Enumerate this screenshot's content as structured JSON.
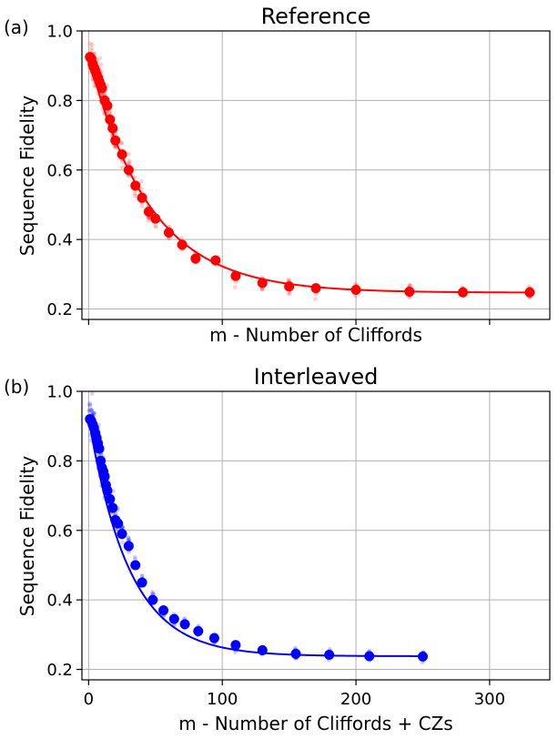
{
  "panels": [
    {
      "panel_label": "(a)",
      "title": "Reference",
      "xlabel": "m - Number of Cliffords",
      "ylabel": "Sequence Fidelity",
      "x_tick_labels_shown": false,
      "color": "#ff0000"
    },
    {
      "panel_label": "(b)",
      "title": "Interleaved",
      "xlabel": "m - Number of Cliffords + CZs",
      "ylabel": "Sequence Fidelity",
      "x_tick_labels_shown": true,
      "color": "#0000ff"
    }
  ],
  "chart_data": [
    {
      "type": "scatter",
      "title": "Reference",
      "xlabel": "m - Number of Cliffords",
      "ylabel": "Sequence Fidelity",
      "xlim": [
        -5,
        345
      ],
      "ylim": [
        0.17,
        1.0
      ],
      "xticks": [
        0,
        100,
        200,
        300
      ],
      "xtick_labels": [],
      "yticks": [
        0.2,
        0.4,
        0.6,
        0.8,
        1.0
      ],
      "ytick_labels": [
        "0.2",
        "0.4",
        "0.6",
        "0.8",
        "1.0"
      ],
      "grid": true,
      "color": "#ff0000",
      "fit": {
        "A": 0.68,
        "p": 0.9783,
        "B": 0.247
      },
      "series": [
        {
          "x": [
            1,
            2,
            3,
            4,
            5,
            6,
            7,
            8,
            9,
            10,
            12,
            14,
            16,
            18,
            20,
            25,
            30,
            35,
            40,
            45,
            50,
            60,
            70,
            80,
            95,
            110,
            130,
            150,
            170,
            200,
            240,
            280,
            330
          ],
          "y": [
            0.925,
            0.92,
            0.905,
            0.895,
            0.885,
            0.875,
            0.865,
            0.855,
            0.845,
            0.835,
            0.8,
            0.785,
            0.745,
            0.72,
            0.685,
            0.645,
            0.6,
            0.555,
            0.52,
            0.48,
            0.46,
            0.42,
            0.385,
            0.345,
            0.34,
            0.295,
            0.275,
            0.265,
            0.26,
            0.255,
            0.25,
            0.248,
            0.248
          ]
        }
      ]
    },
    {
      "type": "scatter",
      "title": "Interleaved",
      "xlabel": "m - Number of Cliffords + CZs",
      "ylabel": "Sequence Fidelity",
      "xlim": [
        -5,
        345
      ],
      "ylim": [
        0.17,
        1.0
      ],
      "xticks": [
        0,
        100,
        200,
        300
      ],
      "xtick_labels": [
        "0",
        "100",
        "200",
        "300"
      ],
      "yticks": [
        0.2,
        0.4,
        0.6,
        0.8,
        1.0
      ],
      "ytick_labels": [
        "0.2",
        "0.4",
        "0.6",
        "0.8",
        "1.0"
      ],
      "grid": true,
      "color": "#0000ff",
      "fit": {
        "A": 0.685,
        "p": 0.9675,
        "B": 0.238
      },
      "series": [
        {
          "x": [
            1,
            2,
            3,
            4,
            5,
            6,
            7,
            8,
            9,
            10,
            11,
            12,
            13,
            14,
            16,
            18,
            20,
            22,
            25,
            30,
            35,
            40,
            48,
            56,
            64,
            72,
            82,
            94,
            110,
            130,
            155,
            180,
            210,
            250
          ],
          "y": [
            0.92,
            0.915,
            0.905,
            0.895,
            0.88,
            0.865,
            0.85,
            0.835,
            0.8,
            0.78,
            0.77,
            0.755,
            0.73,
            0.715,
            0.69,
            0.665,
            0.63,
            0.62,
            0.59,
            0.555,
            0.5,
            0.45,
            0.4,
            0.37,
            0.345,
            0.33,
            0.31,
            0.29,
            0.27,
            0.255,
            0.245,
            0.242,
            0.238,
            0.237
          ]
        }
      ]
    }
  ]
}
